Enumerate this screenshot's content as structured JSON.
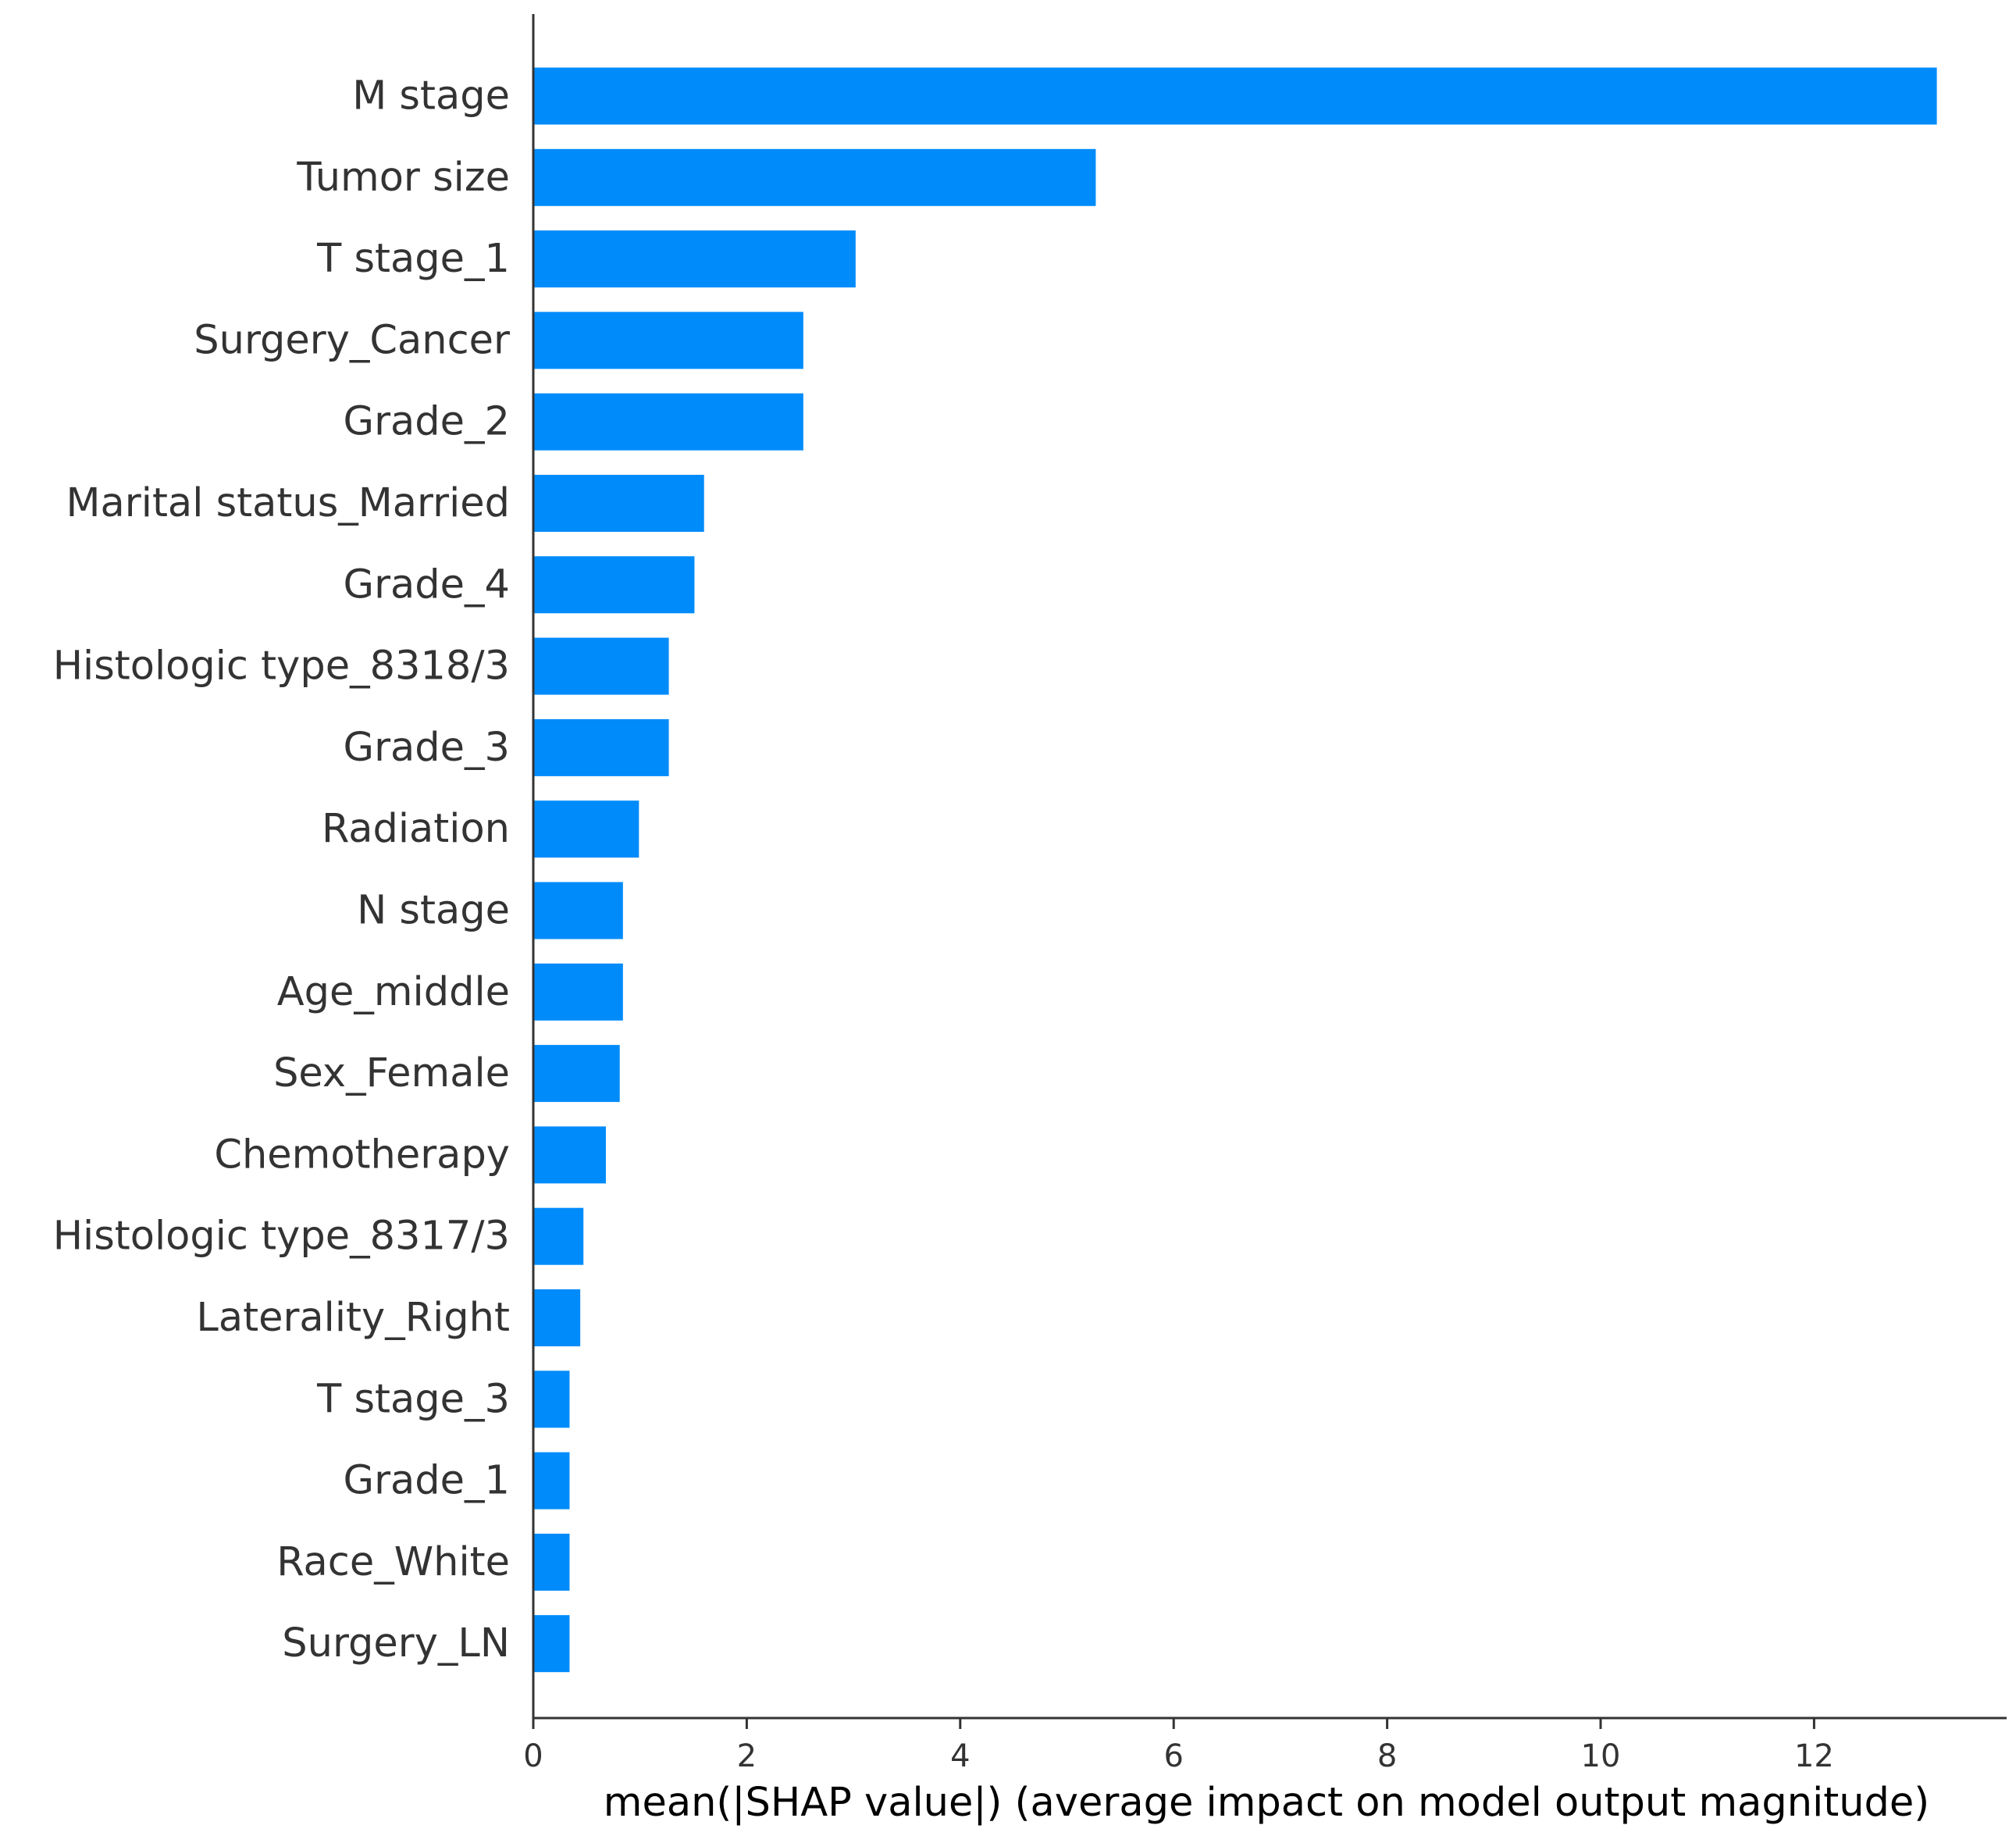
{
  "chart_data": {
    "type": "bar",
    "orientation": "horizontal",
    "categories": [
      "M stage",
      "Tumor size",
      "T stage_1",
      "Surgery_Cancer",
      "Grade_2",
      "Marital status_Married",
      "Grade_4",
      "Histologic type_8318/3",
      "Grade_3",
      "Radiation",
      "N stage",
      "Age_middle",
      "Sex_Female",
      "Chemotherapy",
      "Histologic type_8317/3",
      "Laterality_Right",
      "T stage_3",
      "Grade_1",
      "Race_White",
      "Surgery_LN"
    ],
    "values": [
      13.15,
      5.27,
      3.02,
      2.53,
      2.53,
      1.6,
      1.51,
      1.27,
      1.27,
      0.99,
      0.84,
      0.84,
      0.81,
      0.68,
      0.47,
      0.44,
      0.34,
      0.34,
      0.34,
      0.34
    ],
    "title": "",
    "xlabel": "mean(|SHAP value|) (average impact on model output magnitude)",
    "ylabel": "",
    "xlim": [
      0,
      13.8
    ],
    "xticks": [
      "0",
      "2",
      "4",
      "6",
      "8",
      "10",
      "12"
    ],
    "bar_color": "#008bfb",
    "grid": false,
    "legend": "none"
  }
}
